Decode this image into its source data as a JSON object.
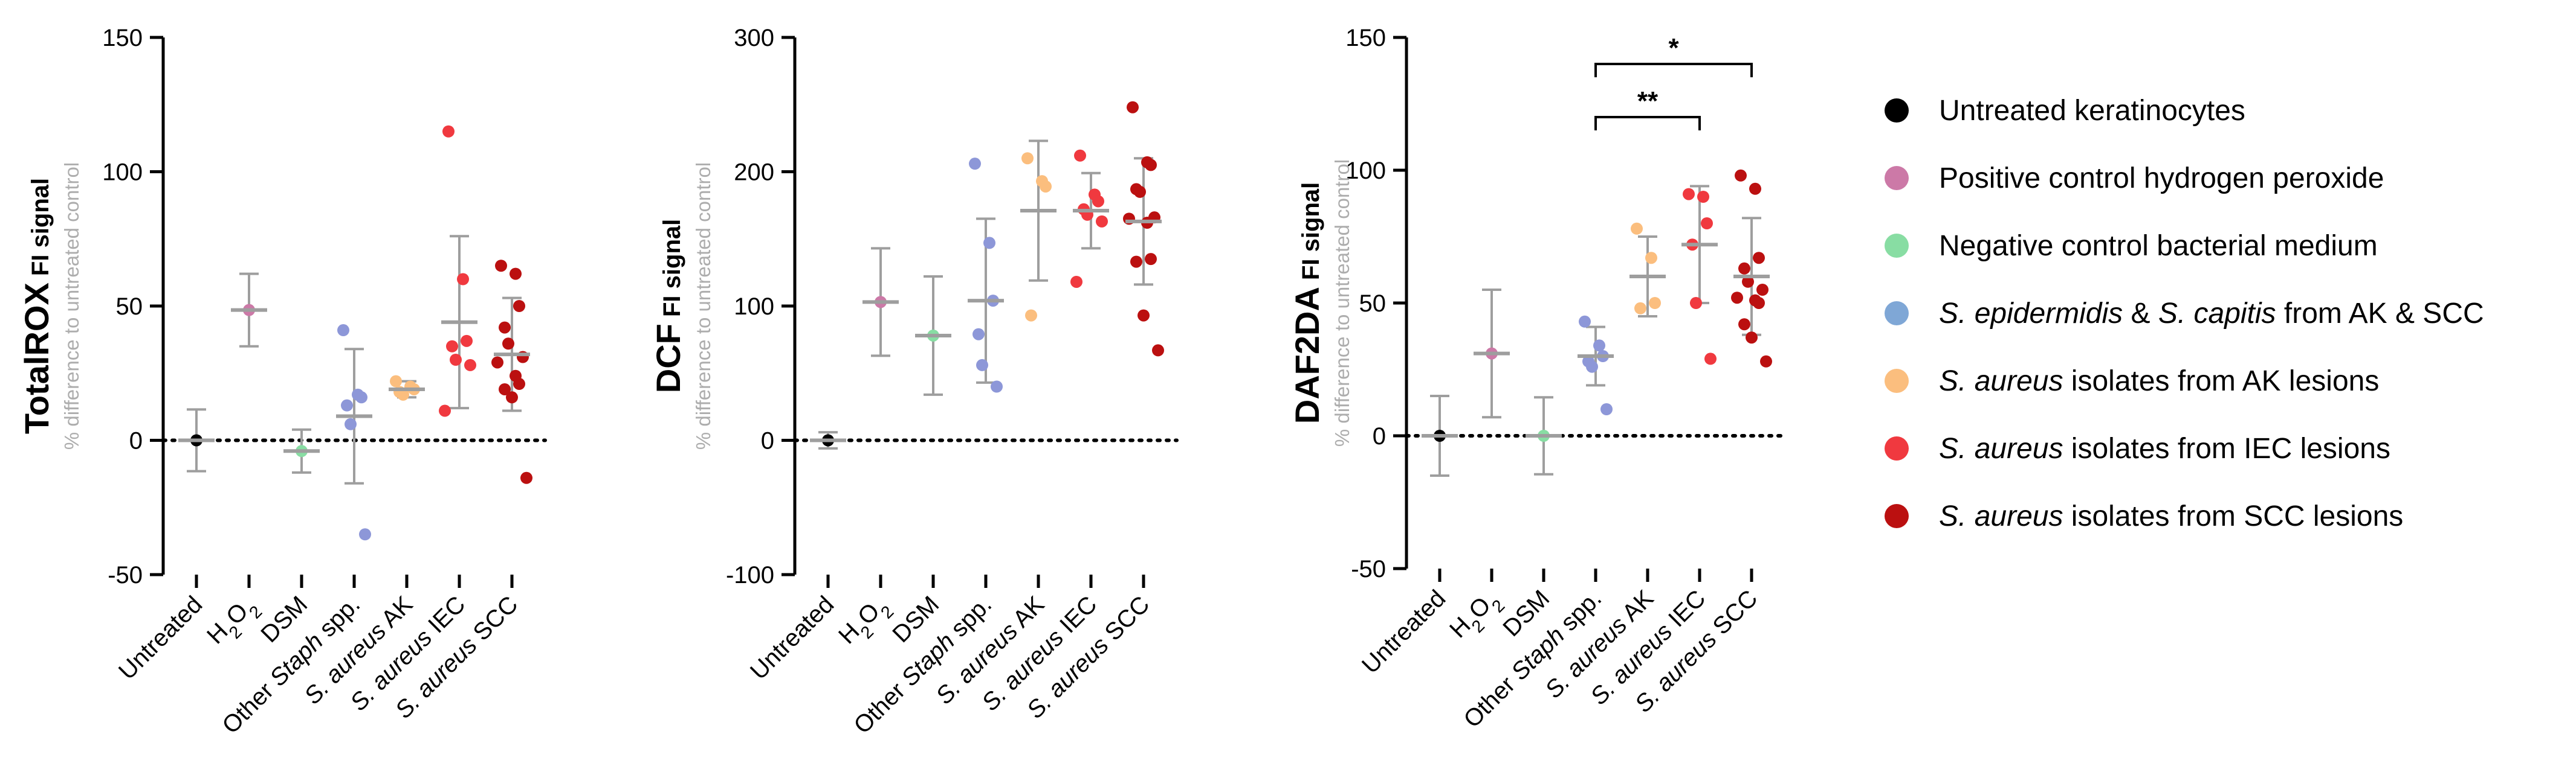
{
  "legend": [
    {
      "id": "untreated",
      "color": "#000000",
      "parts": [
        {
          "t": "Untreated keratinocytes",
          "i": false
        }
      ]
    },
    {
      "id": "h2o2",
      "color": "#CC79A7",
      "parts": [
        {
          "t": "Positive control hydrogen peroxide",
          "i": false
        }
      ]
    },
    {
      "id": "dsm",
      "color": "#88DDA3",
      "parts": [
        {
          "t": "Negative control bacterial medium",
          "i": false
        }
      ]
    },
    {
      "id": "staph",
      "color": "#7FA7D6",
      "parts": [
        {
          "t": "S. epidermidis",
          "i": true
        },
        {
          "t": " & ",
          "i": false
        },
        {
          "t": "S. capitis",
          "i": true
        },
        {
          "t": " from AK & SCC",
          "i": false
        }
      ]
    },
    {
      "id": "ak",
      "color": "#FBBE7E",
      "parts": [
        {
          "t": "S. aureus",
          "i": true
        },
        {
          "t": " isolates from AK lesions",
          "i": false
        }
      ]
    },
    {
      "id": "iec",
      "color": "#F0393F",
      "parts": [
        {
          "t": "S. aureus",
          "i": true
        },
        {
          "t": " isolates from IEC lesions",
          "i": false
        }
      ]
    },
    {
      "id": "scc",
      "color": "#BB1010",
      "parts": [
        {
          "t": "S. aureus",
          "i": true
        },
        {
          "t": " isolates from SCC lesions",
          "i": false
        }
      ]
    }
  ],
  "groups": [
    {
      "id": "untreated",
      "color": "#000000",
      "parts": [
        {
          "t": "Untreated",
          "i": false
        }
      ]
    },
    {
      "id": "h2o2",
      "color": "#CC79A7",
      "parts": [
        {
          "t": "H",
          "i": false
        },
        {
          "t": "2",
          "i": false,
          "sub": true
        },
        {
          "t": "O",
          "i": false
        },
        {
          "t": "2",
          "i": false,
          "sub": true
        }
      ]
    },
    {
      "id": "dsm",
      "color": "#88DDA3",
      "parts": [
        {
          "t": "DSM",
          "i": false
        }
      ]
    },
    {
      "id": "staph",
      "color": "#8D97D8",
      "parts": [
        {
          "t": "Other ",
          "i": false
        },
        {
          "t": "Staph",
          "i": true
        },
        {
          "t": " spp.",
          "i": false
        }
      ]
    },
    {
      "id": "ak",
      "color": "#FBBE7E",
      "parts": [
        {
          "t": "S. aureus",
          "i": true
        },
        {
          "t": " AK",
          "i": false
        }
      ]
    },
    {
      "id": "iec",
      "color": "#F0393F",
      "parts": [
        {
          "t": "S. aureus",
          "i": true
        },
        {
          "t": " IEC",
          "i": false
        }
      ]
    },
    {
      "id": "scc",
      "color": "#BB1010",
      "parts": [
        {
          "t": "S. aureus",
          "i": true
        },
        {
          "t": " SCC",
          "i": false
        }
      ]
    }
  ],
  "chart_data": [
    {
      "type": "scatter",
      "title_bold": "TotalROX",
      "title_rest": " FI signal",
      "ylabel": "% difference to untreated control",
      "ylim": [
        -50,
        150
      ],
      "yticks": [
        -50,
        0,
        50,
        100,
        150
      ],
      "ytick_labels": [
        "-50",
        "0",
        "50",
        "100",
        "150"
      ],
      "reference_line": 0,
      "series": [
        {
          "group": "untreated",
          "mean": 0,
          "sd": 11.5,
          "points": [
            0
          ]
        },
        {
          "group": "h2o2",
          "mean": 48.5,
          "sd": 13.5,
          "points": [
            48.5
          ]
        },
        {
          "group": "dsm",
          "mean": -4,
          "sd": 8,
          "points": [
            -4
          ]
        },
        {
          "group": "staph",
          "mean": 9,
          "sd": 25,
          "points": [
            41,
            17,
            16,
            13,
            6,
            -35
          ]
        },
        {
          "group": "ak",
          "mean": 19,
          "sd": 3,
          "points": [
            22,
            20,
            19,
            18,
            17
          ]
        },
        {
          "group": "iec",
          "mean": 44,
          "sd": 32,
          "points": [
            115,
            60,
            37,
            35,
            30,
            28,
            11
          ]
        },
        {
          "group": "scc",
          "mean": 32,
          "sd": 21,
          "points": [
            65,
            62,
            50,
            42,
            36,
            31,
            29,
            24,
            21,
            19,
            16,
            -14
          ]
        }
      ],
      "significance": []
    },
    {
      "type": "scatter",
      "title_bold": "DCF",
      "title_rest": " FI signal",
      "ylabel": "% difference to untreated control",
      "ylim": [
        -100,
        300
      ],
      "yticks": [
        -100,
        0,
        100,
        200,
        300
      ],
      "ytick_labels": [
        "-100",
        "0",
        "100",
        "200",
        "300"
      ],
      "reference_line": 0,
      "series": [
        {
          "group": "untreated",
          "mean": 0,
          "sd": 6,
          "points": [
            0
          ]
        },
        {
          "group": "h2o2",
          "mean": 103,
          "sd": 40,
          "points": [
            103
          ]
        },
        {
          "group": "dsm",
          "mean": 78,
          "sd": 44,
          "points": [
            78
          ]
        },
        {
          "group": "staph",
          "mean": 104,
          "sd": 61,
          "points": [
            206,
            147,
            104,
            79,
            56,
            40
          ]
        },
        {
          "group": "ak",
          "mean": 171,
          "sd": 52,
          "points": [
            210,
            193,
            189,
            93
          ]
        },
        {
          "group": "iec",
          "mean": 171,
          "sd": 28,
          "points": [
            212,
            183,
            178,
            172,
            168,
            163,
            118
          ]
        },
        {
          "group": "scc",
          "mean": 163,
          "sd": 47,
          "points": [
            248,
            207,
            205,
            187,
            185,
            166,
            165,
            162,
            135,
            133,
            93,
            67
          ]
        }
      ],
      "significance": []
    },
    {
      "type": "scatter",
      "title_bold": "DAF2DA",
      "title_rest": " FI signal",
      "ylabel": "% difference to untreated control",
      "ylim": [
        -50,
        150
      ],
      "yticks": [
        -50,
        0,
        50,
        100,
        150
      ],
      "ytick_labels": [
        "-50",
        "0",
        "50",
        "100",
        "150"
      ],
      "reference_line": 0,
      "series": [
        {
          "group": "untreated",
          "mean": 0,
          "sd": 15,
          "points": [
            0
          ]
        },
        {
          "group": "h2o2",
          "mean": 31,
          "sd": 24,
          "points": [
            31
          ]
        },
        {
          "group": "dsm",
          "mean": 0,
          "sd": 14.5,
          "points": [
            0
          ]
        },
        {
          "group": "staph",
          "mean": 30,
          "sd": 11,
          "points": [
            43,
            34,
            30,
            28,
            26,
            10
          ]
        },
        {
          "group": "ak",
          "mean": 60,
          "sd": 15,
          "points": [
            78,
            67,
            50,
            48
          ]
        },
        {
          "group": "iec",
          "mean": 72,
          "sd": 22,
          "points": [
            91,
            90,
            80,
            72,
            50,
            29
          ]
        },
        {
          "group": "scc",
          "mean": 60,
          "sd": 22,
          "points": [
            98,
            93,
            67,
            63,
            58,
            55,
            52,
            51,
            50,
            42,
            37,
            28
          ]
        }
      ],
      "significance": [
        {
          "label": "**",
          "from": "staph",
          "to": "iec",
          "y": 120
        },
        {
          "label": "*",
          "from": "staph",
          "to": "scc",
          "y": 140
        }
      ]
    }
  ]
}
